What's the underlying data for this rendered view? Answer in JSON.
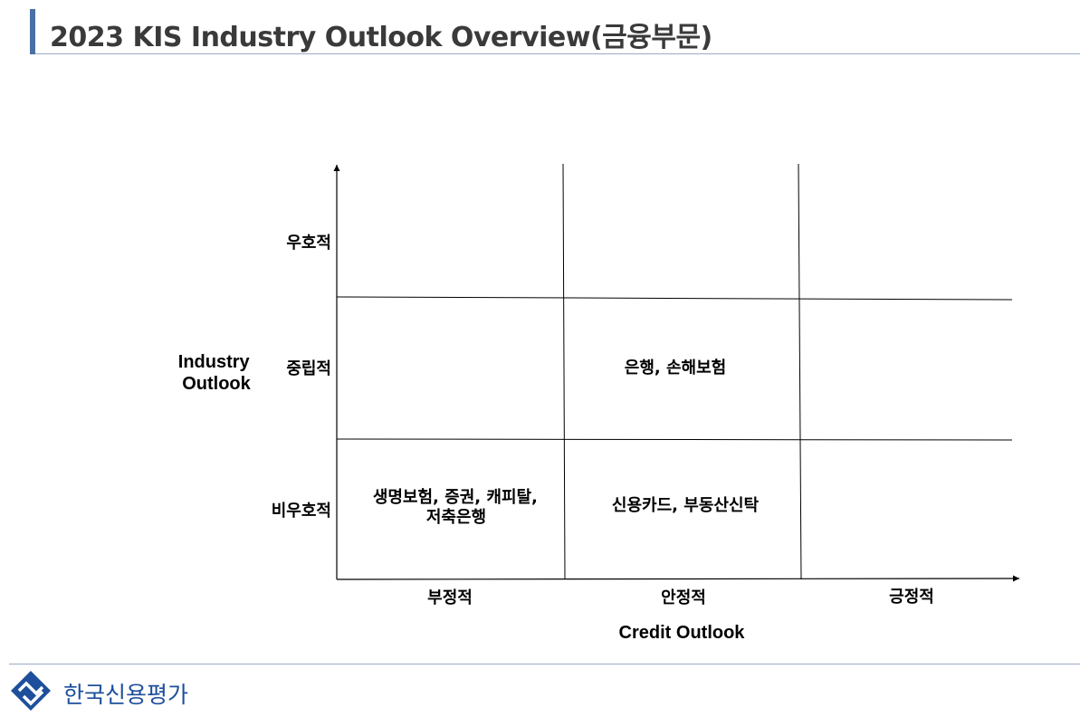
{
  "header": {
    "title": "2023 KIS Industry Outlook Overview(금융부문)"
  },
  "chart_data": {
    "type": "table",
    "ylabel": [
      "Industry",
      "Outlook"
    ],
    "xlabel": "Credit Outlook",
    "y_categories": [
      "우호적",
      "중립적",
      "비우호적"
    ],
    "x_categories": [
      "부정적",
      "안정적",
      "긍정적"
    ],
    "cells": [
      {
        "row": "중립적",
        "col": "안정적",
        "lines": [
          "은행, 손해보험"
        ]
      },
      {
        "row": "비우호적",
        "col": "부정적",
        "lines": [
          "생명보험, 증권, 캐피탈,",
          "저축은행"
        ]
      },
      {
        "row": "비우호적",
        "col": "안정적",
        "lines": [
          "신용카드, 부동산신탁"
        ]
      }
    ]
  },
  "footer": {
    "brand": "한국신용평가",
    "colors": {
      "brand": "#1e4f9c",
      "accent": "#4a6fa5"
    }
  }
}
